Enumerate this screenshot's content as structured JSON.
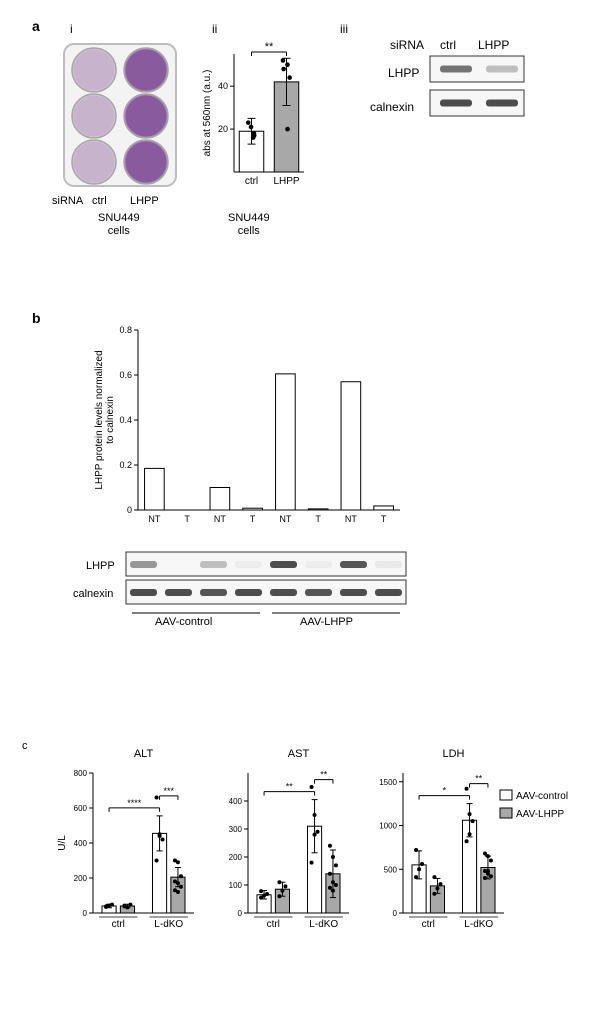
{
  "panel_a": {
    "label": "a",
    "sub_i": "i",
    "sub_ii": "ii",
    "sub_iii": "iii",
    "xaxis_label": "siRNA",
    "conditions": [
      "ctrl",
      "LHPP"
    ],
    "cell_line_label": "SNU449\ncells",
    "well_colors": {
      "ctrl": "#c8b3cc",
      "lhpp": "#8a5a9e",
      "plate_border": "#999999"
    },
    "bar_chart": {
      "type": "bar",
      "ylabel": "abs at 560nm (a.u.)",
      "categories": [
        "ctrl",
        "LHPP"
      ],
      "values": [
        19,
        42
      ],
      "errors": [
        6,
        11
      ],
      "points_ctrl": [
        18,
        17,
        16,
        21,
        23
      ],
      "points_lhpp": [
        52,
        50,
        48,
        44,
        20
      ],
      "bar_colors": [
        "#ffffff",
        "#a8a8a8"
      ],
      "bar_stroke": "#000000",
      "ylim": [
        0,
        55
      ],
      "yticks": [
        20,
        40
      ],
      "sig_label": "**",
      "point_color": "#000000"
    },
    "western": {
      "rows": [
        "LHPP",
        "calnexin"
      ],
      "header_label": "siRNA",
      "columns": [
        "ctrl",
        "LHPP"
      ],
      "band_intensities": {
        "LHPP": [
          0.7,
          0.3
        ],
        "calnexin": [
          0.9,
          0.9
        ]
      },
      "band_color": "#3a3a3a",
      "box_stroke": "#333333"
    }
  },
  "panel_b": {
    "label": "b",
    "bar_chart": {
      "type": "bar",
      "ylabel": "LHPP protein levels normalized\nto calnexin",
      "categories": [
        "NT",
        "T",
        "NT",
        "T",
        "NT",
        "T",
        "NT",
        "T"
      ],
      "values": [
        0.185,
        0.0,
        0.1,
        0.008,
        0.605,
        0.005,
        0.57,
        0.018
      ],
      "bar_color": "#ffffff",
      "bar_stroke": "#000000",
      "ylim": [
        0,
        0.8
      ],
      "yticks": [
        0,
        0.2,
        0.4,
        0.6,
        0.8
      ],
      "group_labels": [
        "AAV-control",
        "AAV-LHPP"
      ]
    },
    "western": {
      "rows": [
        "LHPP",
        "calnexin"
      ],
      "band_intensities": {
        "LHPP": [
          0.5,
          0.0,
          0.3,
          0.05,
          0.9,
          0.05,
          0.85,
          0.08
        ],
        "calnexin": [
          0.9,
          0.9,
          0.85,
          0.9,
          0.9,
          0.85,
          0.9,
          0.9
        ]
      },
      "band_color": "#3a3a3a",
      "box_stroke": "#333333"
    }
  },
  "panel_c": {
    "label": "c",
    "ylabel": "U/L",
    "charts": [
      {
        "title": "ALT",
        "ylim": [
          0,
          800
        ],
        "yticks": [
          0,
          200,
          400,
          600,
          800
        ],
        "groups": [
          "ctrl",
          "L-dKO"
        ],
        "series": [
          {
            "name": "AAV-control",
            "color": "#ffffff",
            "stroke": "#000000",
            "means": [
              40,
              455
            ],
            "errors": [
              10,
              100
            ],
            "points": [
              [
                38,
                42,
                48,
                35
              ],
              [
                300,
                450,
                420,
                660,
                440
              ]
            ]
          },
          {
            "name": "AAV-LHPP",
            "color": "#a8a8a8",
            "stroke": "#000000",
            "means": [
              40,
              205
            ],
            "errors": [
              10,
              55
            ],
            "points": [
              [
                38,
                32,
                48,
                42
              ],
              [
                300,
                290,
                210,
                180,
                170,
                150,
                130,
                120
              ]
            ]
          }
        ],
        "sig": [
          {
            "from": 0,
            "to": 2,
            "label": "****"
          },
          {
            "from": 2,
            "to": 3,
            "label": "***"
          }
        ]
      },
      {
        "title": "AST",
        "ylim": [
          0,
          500
        ],
        "yticks": [
          0,
          100,
          200,
          300,
          400
        ],
        "groups": [
          "ctrl",
          "L-dKO"
        ],
        "series": [
          {
            "name": "AAV-control",
            "color": "#ffffff",
            "stroke": "#000000",
            "means": [
              65,
              310
            ],
            "errors": [
              15,
              95
            ],
            "points": [
              [
                55,
                62,
                68,
                78
              ],
              [
                180,
                280,
                290,
                450,
                350
              ]
            ]
          },
          {
            "name": "AAV-LHPP",
            "color": "#a8a8a8",
            "stroke": "#000000",
            "means": [
              85,
              140
            ],
            "errors": [
              25,
              85
            ],
            "points": [
              [
                60,
                80,
                95,
                110
              ],
              [
                240,
                200,
                170,
                140,
                110,
                100,
                90,
                80
              ]
            ]
          }
        ],
        "sig": [
          {
            "from": 0,
            "to": 2,
            "label": "**"
          },
          {
            "from": 2,
            "to": 3,
            "label": "**"
          }
        ]
      },
      {
        "title": "LDH",
        "ylim": [
          0,
          1600
        ],
        "yticks": [
          0,
          500,
          1000,
          1500
        ],
        "groups": [
          "ctrl",
          "L-dKO"
        ],
        "series": [
          {
            "name": "AAV-control",
            "color": "#ffffff",
            "stroke": "#000000",
            "means": [
              550,
              1060
            ],
            "errors": [
              160,
              190
            ],
            "points": [
              [
                410,
                500,
                560,
                720
              ],
              [
                820,
                900,
                1050,
                1420,
                1130
              ]
            ]
          },
          {
            "name": "AAV-LHPP",
            "color": "#a8a8a8",
            "stroke": "#000000",
            "means": [
              310,
              520
            ],
            "errors": [
              85,
              130
            ],
            "points": [
              [
                220,
                280,
                330,
                410
              ],
              [
                680,
                650,
                600,
                480,
                450,
                420,
                400,
                480
              ]
            ]
          }
        ],
        "sig": [
          {
            "from": 0,
            "to": 2,
            "label": "*"
          },
          {
            "from": 2,
            "to": 3,
            "label": "**"
          }
        ]
      }
    ],
    "legend": [
      {
        "label": "AAV-control",
        "color": "#ffffff",
        "stroke": "#000000"
      },
      {
        "label": "AAV-LHPP",
        "color": "#a8a8a8",
        "stroke": "#000000"
      }
    ]
  }
}
